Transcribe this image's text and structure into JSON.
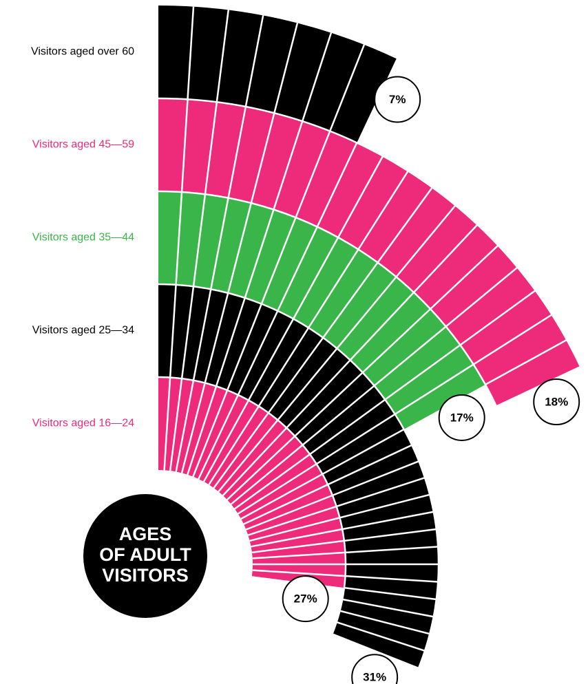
{
  "chart_data": {
    "type": "radial_bar",
    "title_lines": [
      "AGES",
      "OF ADULT",
      "VISITORS"
    ],
    "categories": [
      "Visitors aged over 60",
      "Visitors aged 45—59",
      "Visitors aged 35—44",
      "Visitors aged 25—34",
      "Visitors aged 16—24"
    ],
    "values": [
      7,
      18,
      17,
      31,
      27
    ],
    "value_labels": [
      "7%",
      "18%",
      "17%",
      "31%",
      "27%"
    ],
    "colors": [
      "#000000",
      "#ee2a7b",
      "#39b54a",
      "#000000",
      "#ee2a7b"
    ],
    "label_colors": [
      "#000000",
      "#ee2a7b",
      "#39b54a",
      "#000000",
      "#ee2a7b"
    ]
  }
}
